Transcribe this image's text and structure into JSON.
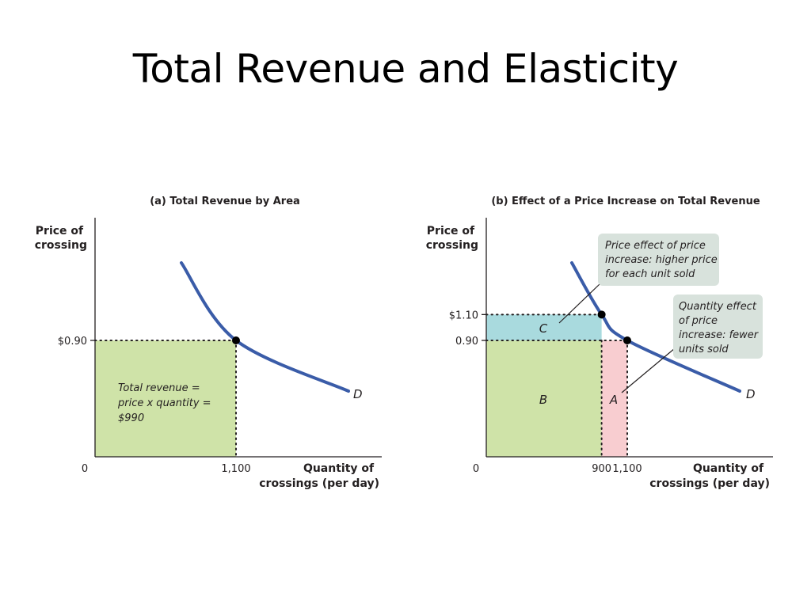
{
  "slide": {
    "title": "Total Revenue and Elasticity"
  },
  "colors": {
    "demand_curve": "#3a5ca8",
    "area_green": "#cfe3a8",
    "area_blue": "#a9dade",
    "area_pink": "#f8cdd0",
    "callout_box": "#d8e2dc",
    "axis": "#231f20"
  },
  "chart_data": [
    {
      "type": "area",
      "title": "(a) Total Revenue by Area",
      "ylabel": [
        "Price of",
        "crossing"
      ],
      "xlabel": [
        "Quantity of",
        "crossings (per day)"
      ],
      "origin_label": "0",
      "x_ticks": [
        {
          "value": 1100,
          "label": "1,100"
        }
      ],
      "y_ticks": [
        {
          "value": 0.9,
          "label": "$0.90"
        }
      ],
      "xlim": [
        0,
        2200
      ],
      "ylim": [
        0,
        1.8
      ],
      "curve": {
        "name": "D",
        "type": "demand"
      },
      "points": [
        {
          "x": 1100,
          "y": 0.9
        }
      ],
      "regions": [
        {
          "x": [
            0,
            1100
          ],
          "y": [
            0,
            0.9
          ],
          "color": "green",
          "text": [
            "Total revenue =",
            "price x quantity =",
            "$990"
          ]
        }
      ]
    },
    {
      "type": "area",
      "title": "(b) Effect of a Price Increase on Total Revenue",
      "ylabel": [
        "Price of",
        "crossing"
      ],
      "xlabel": [
        "Quantity of",
        "crossings (per day)"
      ],
      "origin_label": "0",
      "x_ticks": [
        {
          "value": 900,
          "label": "900"
        },
        {
          "value": 1100,
          "label": "1,100"
        }
      ],
      "y_ticks": [
        {
          "value": 1.1,
          "label": "$1.10"
        },
        {
          "value": 0.9,
          "label": "0.90"
        }
      ],
      "xlim": [
        0,
        2200
      ],
      "ylim": [
        0,
        1.8
      ],
      "curve": {
        "name": "D",
        "type": "demand"
      },
      "points": [
        {
          "x": 900,
          "y": 1.1
        },
        {
          "x": 1100,
          "y": 0.9
        }
      ],
      "regions": [
        {
          "name": "C",
          "x": [
            0,
            900
          ],
          "y": [
            0.9,
            1.1
          ],
          "color": "blue"
        },
        {
          "name": "B",
          "x": [
            0,
            900
          ],
          "y": [
            0,
            0.9
          ],
          "color": "green"
        },
        {
          "name": "A",
          "x": [
            900,
            1100
          ],
          "y": [
            0,
            0.9
          ],
          "color": "pink"
        }
      ],
      "annotations": [
        {
          "target": "C",
          "text": [
            "Price effect of price",
            "increase: higher price",
            "for each unit sold"
          ]
        },
        {
          "target": "A",
          "text": [
            "Quantity effect",
            "of price",
            "increase: fewer",
            "units sold"
          ]
        }
      ]
    }
  ]
}
